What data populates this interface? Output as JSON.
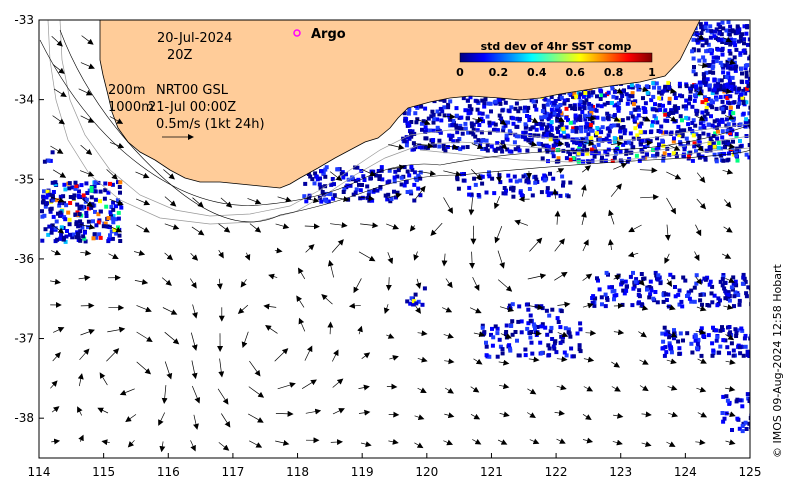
{
  "map": {
    "lon_range": [
      114,
      125
    ],
    "lat_range": [
      -38.5,
      -33
    ],
    "x_ticks": [
      "114",
      "115",
      "116",
      "117",
      "118",
      "119",
      "120",
      "121",
      "122",
      "123",
      "124",
      "125"
    ],
    "y_ticks": [
      "-33",
      "-34",
      "-35",
      "-36",
      "-37",
      "-38"
    ],
    "land_color": "#FFCC99",
    "contours": [
      "200m",
      "1000m"
    ]
  },
  "annotations": {
    "date": "20-Jul-2024",
    "time": "20Z",
    "contour_200": "200m",
    "contour_1000": "1000m",
    "product": "NRT00 GSL",
    "product_time": "21-Jul 00:00Z",
    "scale": "0.5m/s (1kt 24h)",
    "argo_label": "Argo",
    "argo_color": "#ff00ff"
  },
  "colorbar": {
    "title": "std dev of 4hr SST comp",
    "ticks": [
      "0",
      "0.2",
      "0.4",
      "0.6",
      "0.8",
      "1"
    ],
    "colors": [
      "#000080",
      "#0000ff",
      "#0080ff",
      "#00ffff",
      "#80ff80",
      "#ffff00",
      "#ff8000",
      "#ff0000",
      "#800000"
    ]
  },
  "credit": "© IMOS 09-Aug-2024 12:58 Hobart"
}
